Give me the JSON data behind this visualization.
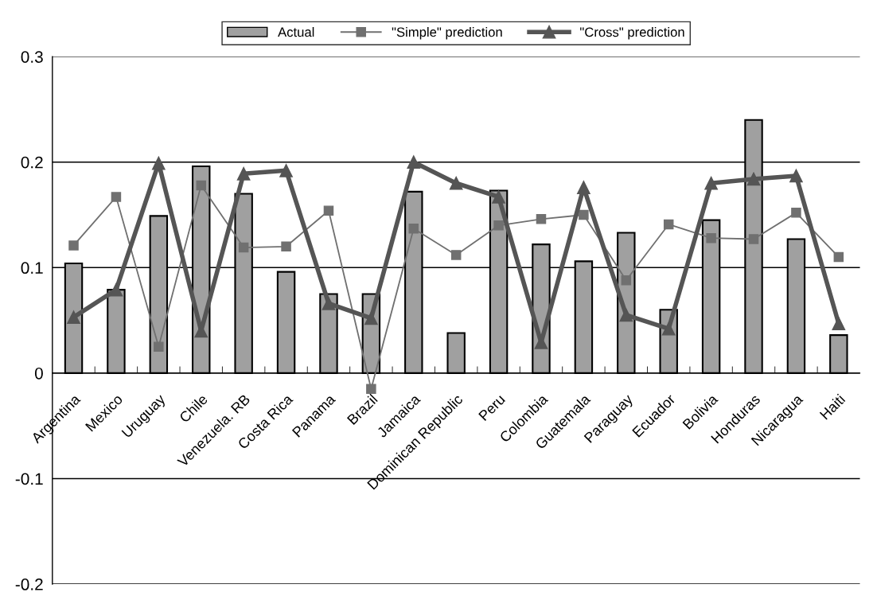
{
  "chart_data": {
    "type": "bar",
    "categories": [
      "Argentina",
      "Mexico",
      "Uruguay",
      "Chile",
      "Venezuela. RB",
      "Costa Rica",
      "Panama",
      "Brazil",
      "Jamaica",
      "Dominican Republic",
      "Peru",
      "Colombia",
      "Guatemala",
      "Paraguay",
      "Ecuador",
      "Bolivia",
      "Honduras",
      "Nicaragua",
      "Haiti"
    ],
    "series": [
      {
        "name": "Actual",
        "color": "#a0a0a0",
        "values": [
          0.104,
          0.079,
          0.149,
          0.196,
          0.17,
          0.096,
          0.075,
          0.075,
          0.172,
          0.038,
          0.173,
          0.122,
          0.106,
          0.133,
          0.06,
          0.145,
          0.24,
          0.127,
          0.036
        ]
      },
      {
        "name": "\"Simple\" prediction",
        "type": "line",
        "marker": "square",
        "color": "#707070",
        "values": [
          0.121,
          0.167,
          0.025,
          0.178,
          0.119,
          0.12,
          0.154,
          -0.015,
          0.137,
          0.112,
          0.14,
          0.146,
          0.15,
          0.088,
          0.141,
          0.128,
          0.127,
          0.152,
          0.11
        ]
      },
      {
        "name": "\"Cross\" prediction",
        "type": "line",
        "marker": "triangle",
        "color": "#555555",
        "values": [
          0.053,
          0.079,
          0.199,
          0.04,
          0.189,
          0.192,
          0.066,
          0.052,
          0.2,
          0.18,
          0.167,
          0.029,
          0.176,
          0.055,
          0.042,
          0.18,
          0.184,
          0.187,
          0.047
        ]
      }
    ],
    "ylim": [
      -0.2,
      0.3
    ],
    "yticks": [
      {
        "value": -0.2,
        "label": "-0.2"
      },
      {
        "value": -0.1,
        "label": "-0.1"
      },
      0,
      0.1,
      0.2,
      0.3
    ],
    "grid": "y",
    "legend": "top",
    "line_style": "solid"
  }
}
